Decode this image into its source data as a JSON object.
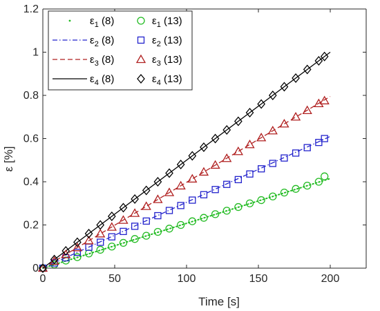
{
  "chart_data": {
    "type": "scatter",
    "xlabel": "Time [s]",
    "ylabel": "ε [%]",
    "xlim": [
      0,
      225
    ],
    "ylim": [
      0,
      1.2
    ],
    "xticks": [
      "0",
      "50",
      "100",
      "150",
      "200"
    ],
    "yticks": [
      "0",
      "0.2",
      "0.4",
      "0.6",
      "0.8",
      "1",
      "1.2"
    ],
    "grid": false,
    "legend_position": "top-left",
    "marker_x": [
      0,
      8,
      16,
      24,
      32,
      40,
      48,
      56,
      64,
      72,
      80,
      88,
      96,
      104,
      112,
      120,
      128,
      136,
      144,
      152,
      160,
      168,
      176,
      184,
      192,
      196
    ],
    "series": [
      {
        "name": "ε1 (8)",
        "kind": "line",
        "style": "dotted",
        "color": "#22bb22",
        "x": [
          0,
          200
        ],
        "y": [
          0,
          0.415
        ]
      },
      {
        "name": "ε1 (13)",
        "kind": "marker",
        "marker": "circle",
        "color": "#22bb22",
        "y": [
          0.0,
          0.017,
          0.035,
          0.051,
          0.068,
          0.085,
          0.1,
          0.117,
          0.135,
          0.15,
          0.168,
          0.183,
          0.2,
          0.217,
          0.233,
          0.25,
          0.266,
          0.283,
          0.3,
          0.315,
          0.332,
          0.35,
          0.367,
          0.382,
          0.4,
          0.425
        ]
      },
      {
        "name": "ε2 (8)",
        "kind": "line",
        "style": "dashdot",
        "color": "#2222cc",
        "x": [
          0,
          200
        ],
        "y": [
          0,
          0.61
        ]
      },
      {
        "name": "ε2 (13)",
        "kind": "marker",
        "marker": "square",
        "color": "#2222cc",
        "y": [
          0.0,
          0.024,
          0.048,
          0.073,
          0.097,
          0.12,
          0.145,
          0.17,
          0.194,
          0.218,
          0.243,
          0.267,
          0.29,
          0.315,
          0.34,
          0.364,
          0.388,
          0.41,
          0.436,
          0.46,
          0.485,
          0.51,
          0.533,
          0.558,
          0.582,
          0.6
        ]
      },
      {
        "name": "ε3 (8)",
        "kind": "line",
        "style": "dashed",
        "color": "#b02020",
        "x": [
          0,
          200
        ],
        "y": [
          0,
          0.795
        ]
      },
      {
        "name": "ε3 (13)",
        "kind": "marker",
        "marker": "triangle",
        "color": "#b02020",
        "y": [
          0.0,
          0.032,
          0.063,
          0.095,
          0.127,
          0.159,
          0.19,
          0.222,
          0.254,
          0.286,
          0.318,
          0.35,
          0.381,
          0.413,
          0.445,
          0.477,
          0.508,
          0.54,
          0.572,
          0.604,
          0.636,
          0.668,
          0.7,
          0.73,
          0.762,
          0.775
        ]
      },
      {
        "name": "ε4 (8)",
        "kind": "line",
        "style": "solid",
        "color": "#000000",
        "x": [
          0,
          200
        ],
        "y": [
          0,
          1.0
        ]
      },
      {
        "name": "ε4 (13)",
        "kind": "marker",
        "marker": "diamond",
        "color": "#000000",
        "y": [
          0.0,
          0.04,
          0.08,
          0.12,
          0.16,
          0.2,
          0.24,
          0.28,
          0.32,
          0.36,
          0.4,
          0.44,
          0.48,
          0.52,
          0.56,
          0.6,
          0.64,
          0.68,
          0.72,
          0.76,
          0.8,
          0.84,
          0.88,
          0.92,
          0.96,
          0.98
        ]
      }
    ],
    "legend": {
      "rows": [
        [
          {
            "symbol": "ε",
            "sub": "1",
            "suffix": " (8)"
          },
          {
            "symbol": "ε",
            "sub": "1",
            "suffix": " (13)"
          }
        ],
        [
          {
            "symbol": "ε",
            "sub": "2",
            "suffix": " (8)"
          },
          {
            "symbol": "ε",
            "sub": "2",
            "suffix": " (13)"
          }
        ],
        [
          {
            "symbol": "ε",
            "sub": "3",
            "suffix": " (8)"
          },
          {
            "symbol": "ε",
            "sub": "3",
            "suffix": " (13)"
          }
        ],
        [
          {
            "symbol": "ε",
            "sub": "4",
            "suffix": " (8)"
          },
          {
            "symbol": "ε",
            "sub": "4",
            "suffix": " (13)"
          }
        ]
      ]
    }
  }
}
